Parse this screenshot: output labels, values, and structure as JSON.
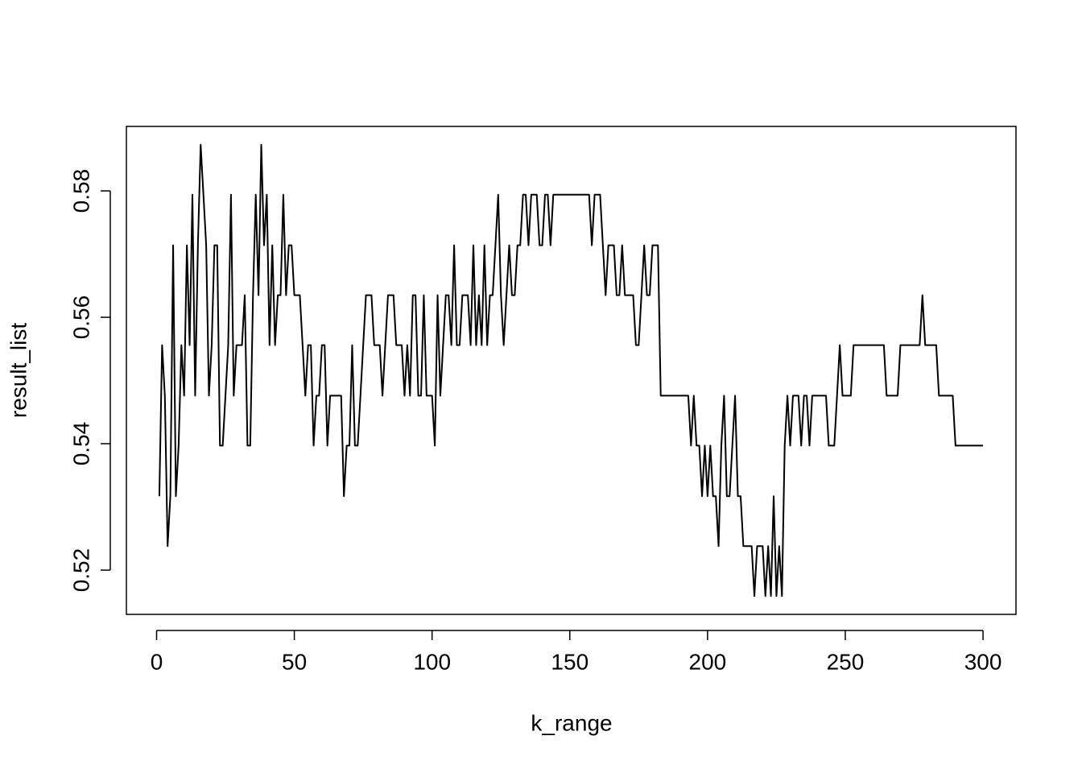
{
  "chart_data": {
    "type": "line",
    "xlabel": "k_range",
    "ylabel": "result_list",
    "color": "#000000",
    "x": [
      1,
      2,
      3,
      4,
      5,
      6,
      7,
      8,
      9,
      10,
      11,
      12,
      13,
      14,
      15,
      16,
      17,
      18,
      19,
      20,
      21,
      22,
      23,
      24,
      25,
      26,
      27,
      28,
      29,
      31,
      32,
      33,
      34,
      35,
      36,
      37,
      38,
      39,
      40,
      41,
      42,
      43,
      44,
      45,
      46,
      47,
      48,
      49,
      50,
      52,
      53,
      54,
      55,
      56,
      57,
      58,
      59,
      60,
      61,
      62,
      63,
      67,
      68,
      69,
      70,
      71,
      72,
      73,
      74,
      75,
      76,
      78,
      79,
      81,
      82,
      83,
      84,
      86,
      87,
      89,
      90,
      91,
      92,
      93,
      94,
      95,
      96,
      97,
      98,
      100,
      101,
      102,
      103,
      104,
      105,
      106,
      107,
      108,
      109,
      110,
      111,
      113,
      114,
      115,
      116,
      117,
      118,
      119,
      120,
      121,
      122,
      123,
      124,
      125,
      126,
      127,
      128,
      129,
      130,
      131,
      132,
      133,
      134,
      135,
      136,
      138,
      139,
      140,
      141,
      142,
      143,
      144,
      157,
      158,
      159,
      161,
      162,
      163,
      164,
      166,
      167,
      168,
      169,
      170,
      173,
      174,
      175,
      176,
      177,
      178,
      179,
      180,
      182,
      183,
      193,
      194,
      195,
      196,
      197,
      198,
      199,
      200,
      201,
      202,
      203,
      204,
      205,
      206,
      207,
      208,
      209,
      210,
      211,
      212,
      213,
      216,
      217,
      218,
      220,
      221,
      222,
      223,
      224,
      225,
      226,
      227,
      228,
      229,
      230,
      231,
      233,
      234,
      235,
      236,
      237,
      238,
      243,
      244,
      246,
      247,
      248,
      249,
      252,
      253,
      264,
      265,
      269,
      270,
      277,
      278,
      279,
      283,
      284,
      289,
      290,
      300
    ],
    "values": [
      0.5317,
      0.5556,
      0.5476,
      0.5238,
      0.5317,
      0.5714,
      0.5317,
      0.5397,
      0.5556,
      0.5476,
      0.5714,
      0.5556,
      0.5794,
      0.5476,
      0.5714,
      0.5873,
      0.5794,
      0.5714,
      0.5476,
      0.5556,
      0.5714,
      0.5714,
      0.5397,
      0.5397,
      0.5476,
      0.5556,
      0.5794,
      0.5476,
      0.5556,
      0.5556,
      0.5635,
      0.5397,
      0.5397,
      0.5635,
      0.5794,
      0.5635,
      0.5873,
      0.5714,
      0.5794,
      0.5556,
      0.5714,
      0.5556,
      0.5635,
      0.5635,
      0.5794,
      0.5635,
      0.5714,
      0.5714,
      0.5635,
      0.5635,
      0.5556,
      0.5476,
      0.5556,
      0.5556,
      0.5397,
      0.5476,
      0.5476,
      0.5556,
      0.5556,
      0.5397,
      0.5476,
      0.5476,
      0.5317,
      0.5397,
      0.5397,
      0.5556,
      0.5397,
      0.5397,
      0.5476,
      0.5556,
      0.5635,
      0.5635,
      0.5556,
      0.5556,
      0.5476,
      0.5556,
      0.5635,
      0.5635,
      0.5556,
      0.5556,
      0.5476,
      0.5556,
      0.5476,
      0.5635,
      0.5635,
      0.5476,
      0.5476,
      0.5635,
      0.5476,
      0.5476,
      0.5397,
      0.5635,
      0.5476,
      0.5556,
      0.5635,
      0.5635,
      0.5556,
      0.5714,
      0.5556,
      0.5556,
      0.5635,
      0.5635,
      0.5556,
      0.5714,
      0.5556,
      0.5635,
      0.5556,
      0.5714,
      0.5556,
      0.5635,
      0.5635,
      0.5714,
      0.5794,
      0.5635,
      0.5556,
      0.5635,
      0.5714,
      0.5635,
      0.5635,
      0.5714,
      0.5714,
      0.5794,
      0.5794,
      0.5714,
      0.5794,
      0.5794,
      0.5714,
      0.5714,
      0.5794,
      0.5794,
      0.5714,
      0.5794,
      0.5794,
      0.5714,
      0.5794,
      0.5794,
      0.5714,
      0.5635,
      0.5714,
      0.5714,
      0.5635,
      0.5635,
      0.5714,
      0.5635,
      0.5635,
      0.5556,
      0.5556,
      0.5635,
      0.5714,
      0.5635,
      0.5635,
      0.5714,
      0.5714,
      0.5476,
      0.5476,
      0.5397,
      0.5476,
      0.5397,
      0.5397,
      0.5317,
      0.5397,
      0.5317,
      0.5397,
      0.5317,
      0.5317,
      0.5238,
      0.5397,
      0.5476,
      0.5317,
      0.5317,
      0.5397,
      0.5476,
      0.5317,
      0.5317,
      0.5238,
      0.5238,
      0.5159,
      0.5238,
      0.5238,
      0.5159,
      0.5238,
      0.5159,
      0.5317,
      0.5159,
      0.5238,
      0.5159,
      0.5397,
      0.5476,
      0.5397,
      0.5476,
      0.5476,
      0.5397,
      0.5476,
      0.5476,
      0.5397,
      0.5476,
      0.5476,
      0.5397,
      0.5397,
      0.5476,
      0.5556,
      0.5476,
      0.5476,
      0.5556,
      0.5556,
      0.5476,
      0.5476,
      0.5556,
      0.5556,
      0.5635,
      0.5556,
      0.5556,
      0.5476,
      0.5476,
      0.5397,
      0.5397
    ],
    "xlim": [
      -10.96,
      311.96
    ],
    "xticks": [
      0,
      50,
      100,
      150,
      200,
      250,
      300
    ],
    "ylim": [
      0.513,
      0.5902
    ],
    "yticks": [
      0.52,
      0.54,
      0.56,
      0.58
    ]
  }
}
